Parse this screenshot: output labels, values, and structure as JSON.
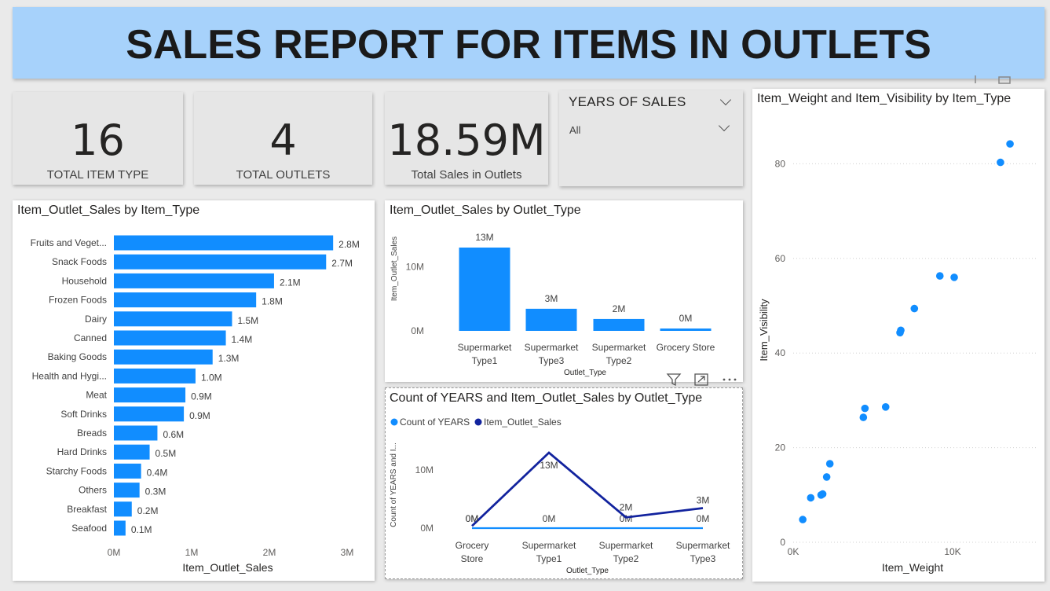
{
  "header": {
    "title": "SALES REPORT FOR ITEMS IN OUTLETS"
  },
  "cards": [
    {
      "value": "16",
      "label": "TOTAL ITEM TYPE"
    },
    {
      "value": "4",
      "label": "TOTAL OUTLETS"
    },
    {
      "value": "18.59M",
      "label": "Total Sales in Outlets"
    }
  ],
  "slicer": {
    "title": "YEARS OF SALES",
    "selected": "All"
  },
  "colors": {
    "accent": "#118dff",
    "dark_series": "#12239e",
    "banner": "#a7d2fb"
  },
  "chart_data": [
    {
      "id": "by_item_type",
      "type": "bar",
      "orientation": "horizontal",
      "title": "Item_Outlet_Sales by Item_Type",
      "xlabel": "Item_Outlet_Sales",
      "ylabel": "",
      "categories": [
        "Fruits and Veget...",
        "Snack Foods",
        "Household",
        "Frozen Foods",
        "Dairy",
        "Canned",
        "Baking Goods",
        "Health and Hygi...",
        "Meat",
        "Soft Drinks",
        "Breads",
        "Hard Drinks",
        "Starchy Foods",
        "Others",
        "Breakfast",
        "Seafood"
      ],
      "values": [
        2.82,
        2.73,
        2.06,
        1.83,
        1.52,
        1.44,
        1.27,
        1.05,
        0.92,
        0.9,
        0.56,
        0.46,
        0.35,
        0.33,
        0.23,
        0.15
      ],
      "labels": [
        "2.8M",
        "2.7M",
        "2.1M",
        "1.8M",
        "1.5M",
        "1.4M",
        "1.3M",
        "1.0M",
        "0.9M",
        "0.9M",
        "0.6M",
        "0.5M",
        "0.4M",
        "0.3M",
        "0.2M",
        "0.1M"
      ],
      "unit": "M",
      "xlim": [
        0,
        3
      ],
      "xticks": [
        "0M",
        "1M",
        "2M",
        "3M"
      ]
    },
    {
      "id": "by_outlet_type",
      "type": "bar",
      "orientation": "vertical",
      "title": "Item_Outlet_Sales by Outlet_Type",
      "xlabel": "Outlet_Type",
      "ylabel": "Item_Outlet_Sales",
      "categories": [
        [
          "Supermarket",
          "Type1"
        ],
        [
          "Supermarket",
          "Type3"
        ],
        [
          "Supermarket",
          "Type2"
        ],
        [
          "Grocery Store"
        ]
      ],
      "values": [
        13,
        3.45,
        1.85,
        0.37
      ],
      "labels": [
        "13M",
        "3M",
        "2M",
        "0M"
      ],
      "unit": "M",
      "ylim": [
        0,
        14
      ],
      "yticks": [
        {
          "v": 0,
          "t": "0M"
        },
        {
          "v": 10,
          "t": "10M"
        }
      ]
    },
    {
      "id": "count_and_sales",
      "type": "line",
      "title": "Count of YEARS and Item_Outlet_Sales by Outlet_Type",
      "xlabel": "Outlet_Type",
      "ylabel": "Count of YEARS and I...",
      "categories": [
        [
          "Grocery",
          "Store"
        ],
        [
          "Supermarket",
          "Type1"
        ],
        [
          "Supermarket",
          "Type2"
        ],
        [
          "Supermarket",
          "Type3"
        ]
      ],
      "series": [
        {
          "name": "Count of YEARS",
          "color": "#118dff",
          "values": [
            0.0001,
            0.0004,
            0.0001,
            0.0001
          ],
          "labels": [
            "0M",
            "0M",
            "0M",
            "0M"
          ]
        },
        {
          "name": "Item_Outlet_Sales",
          "color": "#12239e",
          "values": [
            0.37,
            13,
            1.85,
            3.45
          ],
          "labels": [
            "0M",
            "13M",
            "2M",
            "3M"
          ]
        }
      ],
      "unit": "M",
      "ylim": [
        0,
        14
      ],
      "yticks": [
        {
          "v": 0,
          "t": "0M"
        },
        {
          "v": 10,
          "t": "10M"
        }
      ]
    },
    {
      "id": "weight_visibility",
      "type": "scatter",
      "title": "Item_Weight and Item_Visibility by Item_Type",
      "xlabel": "Item_Weight",
      "ylabel": "Item_Visibility",
      "xlim": [
        0,
        14000
      ],
      "ylim": [
        0,
        88
      ],
      "xticks": [
        {
          "v": 0,
          "t": "0K"
        },
        {
          "v": 10000,
          "t": "10K"
        }
      ],
      "yticks": [
        0,
        20,
        40,
        60,
        80
      ],
      "points": [
        [
          600,
          4.8
        ],
        [
          1100,
          9.4
        ],
        [
          1750,
          10.0
        ],
        [
          1850,
          10.2
        ],
        [
          2100,
          13.8
        ],
        [
          2300,
          16.6
        ],
        [
          4400,
          26.4
        ],
        [
          4500,
          28.3
        ],
        [
          5800,
          28.6
        ],
        [
          6700,
          44.3
        ],
        [
          6750,
          44.8
        ],
        [
          7600,
          49.4
        ],
        [
          9200,
          56.3
        ],
        [
          10100,
          56.0
        ],
        [
          13000,
          80.3
        ],
        [
          13600,
          84.2
        ]
      ]
    }
  ]
}
